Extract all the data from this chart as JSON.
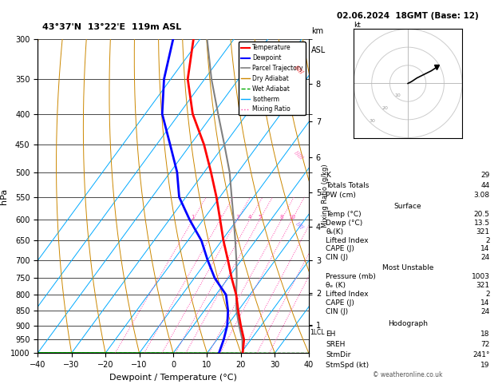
{
  "title_left": "43°37'N  13°22'E  119m ASL",
  "title_right": "02.06.2024  18GMT (Base: 12)",
  "xlabel": "Dewpoint / Temperature (°C)",
  "ylabel_left": "hPa",
  "pressure_levels": [
    300,
    350,
    400,
    450,
    500,
    550,
    600,
    650,
    700,
    750,
    800,
    850,
    900,
    950,
    1000
  ],
  "xlim": [
    -40,
    40
  ],
  "P_min": 300,
  "P_max": 1000,
  "temp_profile": {
    "temps": [
      20.5,
      18.0,
      14.0,
      10.0,
      6.0,
      1.0,
      -4.0,
      -9.5,
      -15.0,
      -21.0,
      -28.0,
      -36.0,
      -46.0,
      -55.0,
      -62.0
    ],
    "pressures": [
      1000,
      950,
      900,
      850,
      800,
      750,
      700,
      650,
      600,
      550,
      500,
      450,
      400,
      350,
      300
    ]
  },
  "dewp_profile": {
    "temps": [
      13.5,
      12.0,
      10.0,
      7.0,
      3.0,
      -4.0,
      -10.0,
      -16.0,
      -24.0,
      -32.0,
      -38.0,
      -46.0,
      -55.0,
      -62.0,
      -68.0
    ],
    "pressures": [
      1000,
      950,
      900,
      850,
      800,
      750,
      700,
      650,
      600,
      550,
      500,
      450,
      400,
      350,
      300
    ]
  },
  "parcel_profile": {
    "temps": [
      20.5,
      17.5,
      13.5,
      9.5,
      6.0,
      2.5,
      -1.5,
      -6.0,
      -11.0,
      -16.5,
      -22.5,
      -30.0,
      -38.5,
      -48.0,
      -58.0
    ],
    "pressures": [
      1000,
      950,
      900,
      850,
      800,
      750,
      700,
      650,
      600,
      550,
      500,
      450,
      400,
      350,
      300
    ]
  },
  "skew_factor": 0.85,
  "colors": {
    "temp": "#ff0000",
    "dewp": "#0000ff",
    "parcel": "#808080",
    "dry_adiabat": "#cc8800",
    "wet_adiabat": "#00aa00",
    "isotherm": "#00aaff",
    "mixing_ratio": "#ff44aa",
    "background": "#ffffff",
    "grid": "#000000"
  },
  "lcl_pressure": 925,
  "km_labels": [
    1,
    2,
    3,
    4,
    5,
    6,
    7,
    8
  ],
  "km_pressures": [
    898,
    795,
    701,
    616,
    540,
    472,
    411,
    357
  ],
  "surface": {
    "Temp": "20.5",
    "Dewp": "13.5",
    "theta_e": "321",
    "Lifted_Index": "2",
    "CAPE": "14",
    "CIN": "24"
  },
  "most_unstable": {
    "Pressure": "1003",
    "theta_e": "321",
    "Lifted_Index": "2",
    "CAPE": "14",
    "CIN": "24"
  },
  "indices": {
    "K": "29",
    "Totals_Totals": "44",
    "PW": "3.08"
  },
  "hodograph": {
    "EH": "18",
    "SREH": "72",
    "StmDir": "241",
    "StmSpd": "19"
  },
  "hodo_u": [
    0,
    2,
    5,
    9,
    13,
    16
  ],
  "hodo_v": [
    0,
    1,
    3,
    5,
    7,
    9
  ],
  "copyright": "© weatheronline.co.uk"
}
